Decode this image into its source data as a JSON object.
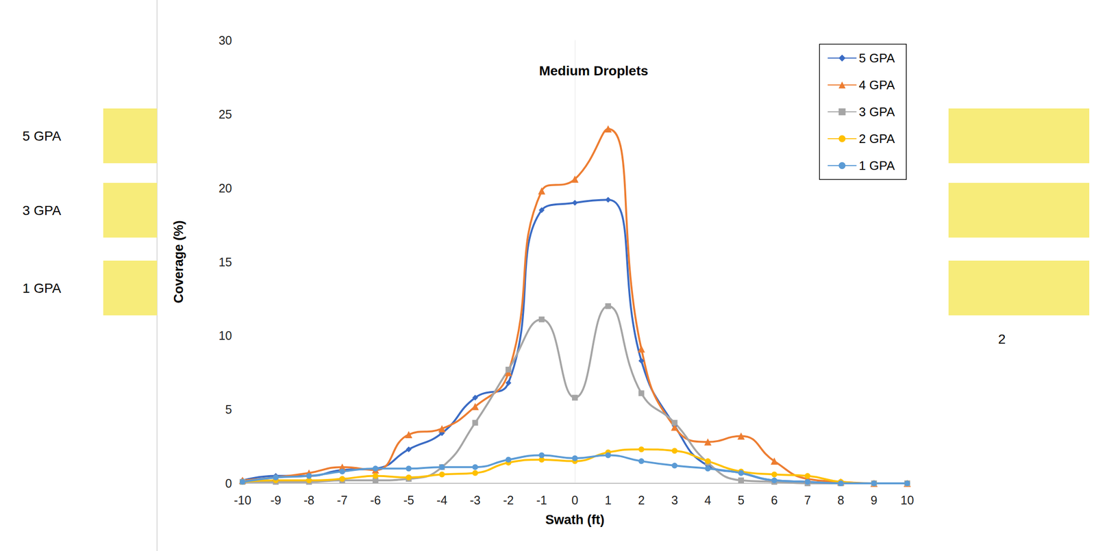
{
  "chart_data": {
    "type": "line",
    "title": "Medium Droplets",
    "x_label": "Swath (ft)",
    "y_label": "Coverage (%)",
    "x": [
      -10,
      -9,
      -8,
      -7,
      -6,
      -5,
      -4,
      -3,
      -2,
      -1,
      0,
      1,
      2,
      3,
      4,
      5,
      6,
      7,
      8,
      9,
      10
    ],
    "series": [
      {
        "name": "5 GPA",
        "color": "#3a6bc4",
        "marker": "diamond",
        "values": [
          0.2,
          0.5,
          0.5,
          0.9,
          1.0,
          2.3,
          3.4,
          5.8,
          6.8,
          18.5,
          19.0,
          19.2,
          8.3,
          3.9,
          1.2,
          0.7,
          0.2,
          0.1,
          0.0,
          0.0,
          0.0
        ]
      },
      {
        "name": "4 GPA",
        "color": "#ed7d31",
        "marker": "triangle",
        "values": [
          0.2,
          0.4,
          0.7,
          1.1,
          0.9,
          3.3,
          3.7,
          5.2,
          7.5,
          19.8,
          20.6,
          24.0,
          9.1,
          3.8,
          2.8,
          3.2,
          1.5,
          0.3,
          0.1,
          0.0,
          0.0
        ]
      },
      {
        "name": "3 GPA",
        "color": "#a5a5a5",
        "marker": "square",
        "values": [
          0.1,
          0.1,
          0.1,
          0.2,
          0.2,
          0.3,
          1.1,
          4.1,
          7.7,
          11.1,
          5.8,
          12.0,
          6.1,
          4.1,
          1.4,
          0.2,
          0.1,
          0.0,
          0.0,
          0.0,
          0.0
        ]
      },
      {
        "name": "2 GPA",
        "color": "#ffc000",
        "marker": "circle",
        "values": [
          0.1,
          0.2,
          0.2,
          0.3,
          0.5,
          0.4,
          0.6,
          0.7,
          1.4,
          1.6,
          1.5,
          2.1,
          2.3,
          2.2,
          1.5,
          0.8,
          0.6,
          0.5,
          0.1,
          0.0,
          0.0
        ]
      },
      {
        "name": "1 GPA",
        "color": "#5b9bd5",
        "marker": "circle",
        "values": [
          0.1,
          0.4,
          0.5,
          0.8,
          1.0,
          1.0,
          1.1,
          1.1,
          1.6,
          1.9,
          1.7,
          1.9,
          1.5,
          1.2,
          1.0,
          0.7,
          0.2,
          0.1,
          0.0,
          0.0,
          0.0
        ]
      }
    ],
    "xlim": [
      -10,
      10
    ],
    "xticks": [
      -10,
      -9,
      -8,
      -7,
      -6,
      -5,
      -4,
      -3,
      -2,
      -1,
      0,
      1,
      2,
      3,
      4,
      5,
      6,
      7,
      8,
      9,
      10
    ],
    "ylim": [
      0,
      30
    ],
    "yticks": [
      0,
      5,
      10,
      15,
      20,
      25,
      30
    ],
    "grid": false,
    "legend": "upper right",
    "annotations": [
      "5 GPA",
      "3 GPA",
      "1 GPA",
      "2"
    ]
  }
}
